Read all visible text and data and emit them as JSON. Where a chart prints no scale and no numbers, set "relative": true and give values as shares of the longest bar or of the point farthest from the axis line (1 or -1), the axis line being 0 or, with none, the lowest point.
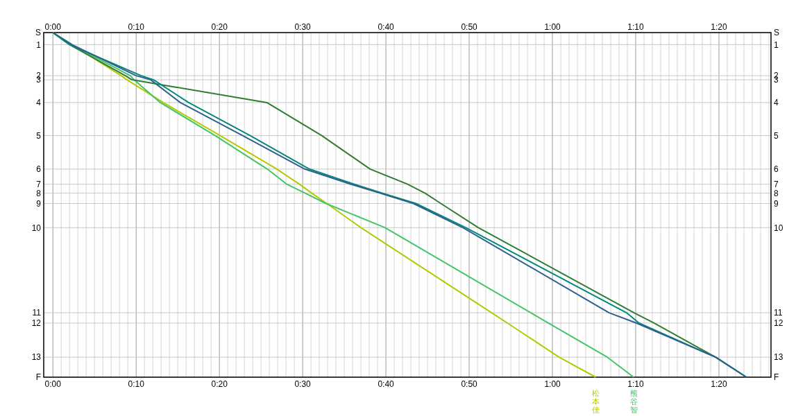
{
  "chart_data": {
    "type": "line",
    "relative": true,
    "xlim": [
      -1.1,
      86.25
    ],
    "x2lim": [
      -1.1,
      86.25
    ],
    "xticks": [
      {
        "value": 0,
        "label": "0:00"
      },
      {
        "value": 1,
        "label": null
      },
      {
        "value": 2,
        "label": null
      },
      {
        "value": 3,
        "label": null
      },
      {
        "value": 4,
        "label": null
      },
      {
        "value": 5,
        "label": null
      },
      {
        "value": 6,
        "label": null
      },
      {
        "value": 7,
        "label": null
      },
      {
        "value": 8,
        "label": null
      },
      {
        "value": 9,
        "label": null
      },
      {
        "value": 10,
        "label": "0:10"
      },
      {
        "value": 11,
        "label": null
      },
      {
        "value": 12,
        "label": null
      },
      {
        "value": 13,
        "label": null
      },
      {
        "value": 14,
        "label": null
      },
      {
        "value": 15,
        "label": null
      },
      {
        "value": 16,
        "label": null
      },
      {
        "value": 17,
        "label": null
      },
      {
        "value": 18,
        "label": null
      },
      {
        "value": 19,
        "label": null
      },
      {
        "value": 20,
        "label": "0:20"
      },
      {
        "value": 21,
        "label": null
      },
      {
        "value": 22,
        "label": null
      },
      {
        "value": 23,
        "label": null
      },
      {
        "value": 24,
        "label": null
      },
      {
        "value": 25,
        "label": null
      },
      {
        "value": 26,
        "label": null
      },
      {
        "value": 27,
        "label": null
      },
      {
        "value": 28,
        "label": null
      },
      {
        "value": 29,
        "label": null
      },
      {
        "value": 30,
        "label": "0:30"
      },
      {
        "value": 31,
        "label": null
      },
      {
        "value": 32,
        "label": null
      },
      {
        "value": 33,
        "label": null
      },
      {
        "value": 34,
        "label": null
      },
      {
        "value": 35,
        "label": null
      },
      {
        "value": 36,
        "label": null
      },
      {
        "value": 37,
        "label": null
      },
      {
        "value": 38,
        "label": null
      },
      {
        "value": 39,
        "label": null
      },
      {
        "value": 40,
        "label": "0:40"
      },
      {
        "value": 41,
        "label": null
      },
      {
        "value": 42,
        "label": null
      },
      {
        "value": 43,
        "label": null
      },
      {
        "value": 44,
        "label": null
      },
      {
        "value": 45,
        "label": null
      },
      {
        "value": 46,
        "label": null
      },
      {
        "value": 47,
        "label": null
      },
      {
        "value": 48,
        "label": null
      },
      {
        "value": 49,
        "label": null
      },
      {
        "value": 50,
        "label": "0:50"
      },
      {
        "value": 51,
        "label": null
      },
      {
        "value": 52,
        "label": null
      },
      {
        "value": 53,
        "label": null
      },
      {
        "value": 54,
        "label": null
      },
      {
        "value": 55,
        "label": null
      },
      {
        "value": 56,
        "label": null
      },
      {
        "value": 57,
        "label": null
      },
      {
        "value": 58,
        "label": null
      },
      {
        "value": 59,
        "label": null
      },
      {
        "value": 60,
        "label": "1:00"
      },
      {
        "value": 61,
        "label": null
      },
      {
        "value": 62,
        "label": null
      },
      {
        "value": 63,
        "label": null
      },
      {
        "value": 64,
        "label": null
      },
      {
        "value": 65,
        "label": null
      },
      {
        "value": 66,
        "label": null
      },
      {
        "value": 67,
        "label": null
      },
      {
        "value": 68,
        "label": null
      },
      {
        "value": 69,
        "label": null
      },
      {
        "value": 70,
        "label": "1:10"
      },
      {
        "value": 71,
        "label": null
      },
      {
        "value": 72,
        "label": null
      },
      {
        "value": 73,
        "label": null
      },
      {
        "value": 74,
        "label": null
      },
      {
        "value": 75,
        "label": null
      },
      {
        "value": 76,
        "label": null
      },
      {
        "value": 77,
        "label": null
      },
      {
        "value": 78,
        "label": null
      },
      {
        "value": 79,
        "label": null
      },
      {
        "value": 80,
        "label": "1:20"
      },
      {
        "value": 81,
        "label": null
      },
      {
        "value": 82,
        "label": null
      },
      {
        "value": 83,
        "label": null
      },
      {
        "value": 84,
        "label": null
      },
      {
        "value": 85,
        "label": null
      },
      {
        "value": 86,
        "label": null
      }
    ],
    "x2ticks": [
      {
        "value": 0,
        "label": "0:00"
      },
      {
        "value": 10,
        "label": "0:10"
      },
      {
        "value": 20,
        "label": "0:20"
      },
      {
        "value": 30,
        "label": "0:30"
      },
      {
        "value": 40,
        "label": "0:40"
      },
      {
        "value": 50,
        "label": "0:50"
      },
      {
        "value": 60,
        "label": "1:00"
      },
      {
        "value": 70,
        "label": "1:10"
      },
      {
        "value": 80,
        "label": "1:20"
      }
    ],
    "ref_lines": [
      {
        "axis": "y",
        "value": 0,
        "color": "#c8c8c8"
      },
      {
        "axis": "y",
        "value": -0.035,
        "color": "#c8c8c8"
      },
      {
        "axis": "y",
        "value": -0.125,
        "color": "#c8c8c8"
      },
      {
        "axis": "y",
        "value": -0.137,
        "color": "#c8c8c8"
      },
      {
        "axis": "y",
        "value": -0.203,
        "color": "#c8c8c8"
      },
      {
        "axis": "y",
        "value": -0.299,
        "color": "#c8c8c8"
      },
      {
        "axis": "y",
        "value": -0.396,
        "color": "#c8c8c8"
      },
      {
        "axis": "y",
        "value": -0.44,
        "color": "#c8c8c8"
      },
      {
        "axis": "y",
        "value": -0.466,
        "color": "#c8c8c8"
      },
      {
        "axis": "y",
        "value": -0.496,
        "color": "#c8c8c8"
      },
      {
        "axis": "y",
        "value": -0.566,
        "color": "#c8c8c8"
      },
      {
        "axis": "y",
        "value": -0.813,
        "color": "#c8c8c8"
      },
      {
        "axis": "y",
        "value": -0.843,
        "color": "#c8c8c8"
      },
      {
        "axis": "y",
        "value": -0.942,
        "color": "#c8c8c8"
      },
      {
        "axis": "y",
        "value": -1,
        "color": "#c8c8c8"
      }
    ],
    "annotations": [
      "S",
      "1",
      "2",
      "3",
      "4",
      "5",
      "6",
      "7",
      "8",
      "9",
      "10",
      "11",
      "12",
      "13",
      "F"
    ],
    "grid": "x",
    "marker": "none",
    "line_style": "solid",
    "series": [
      {
        "name": "松本佳",
        "color": "#b5c800",
        "x": [
          0,
          2.3,
          8.2,
          8.9,
          13.25,
          20.1,
          26.9,
          29.6,
          31.1,
          32.9,
          37.0,
          52.7,
          54.6,
          60.8,
          65.2
        ],
        "values": [
          0,
          -0.035,
          -0.125,
          -0.137,
          -0.203,
          -0.299,
          -0.396,
          -0.44,
          -0.466,
          -0.496,
          -0.566,
          -0.813,
          -0.843,
          -0.942,
          -1
        ]
      },
      {
        "name": "熊谷智",
        "color": "#44c46a",
        "x": [
          0,
          2.2,
          9.3,
          9.75,
          12.9,
          19.5,
          25.75,
          28.1,
          30.3,
          32.8,
          39.9,
          57.4,
          59.5,
          66.6,
          69.75
        ],
        "values": [
          0,
          -0.035,
          -0.125,
          -0.137,
          -0.203,
          -0.299,
          -0.396,
          -0.44,
          -0.466,
          -0.496,
          -0.566,
          -0.813,
          -0.843,
          -0.942,
          -1
        ]
      },
      {
        "color": "#2e7d32",
        "x": [
          0,
          2.0,
          8.7,
          9.5,
          25.7,
          32.3,
          38.1,
          42.6,
          44.7,
          46.6,
          51.1,
          69.8,
          72.2,
          79.6,
          83.3
        ],
        "values": [
          0,
          -0.035,
          -0.125,
          -0.137,
          -0.203,
          -0.299,
          -0.396,
          -0.44,
          -0.466,
          -0.496,
          -0.566,
          -0.813,
          -0.843,
          -0.942,
          -1
        ]
      },
      {
        "color": "#00897b",
        "x": [
          0,
          2.0,
          10.6,
          12.1,
          16.3,
          23.7,
          30.8,
          36.2,
          39.6,
          43.6,
          49.6,
          68.9,
          70.4,
          79.6,
          83.3
        ],
        "values": [
          0,
          -0.035,
          -0.125,
          -0.137,
          -0.203,
          -0.299,
          -0.396,
          -0.44,
          -0.466,
          -0.496,
          -0.566,
          -0.813,
          -0.843,
          -0.942,
          -1
        ]
      },
      {
        "color": "#2f5f8f",
        "x": [
          0,
          2.3,
          10.0,
          11.75,
          15.3,
          22.8,
          30.25,
          35.8,
          39.3,
          43.3,
          49.25,
          66.8,
          70.1,
          79.6,
          83.3
        ],
        "values": [
          0,
          -0.035,
          -0.125,
          -0.137,
          -0.203,
          -0.299,
          -0.396,
          -0.44,
          -0.466,
          -0.496,
          -0.566,
          -0.813,
          -0.843,
          -0.942,
          -1
        ]
      }
    ]
  }
}
